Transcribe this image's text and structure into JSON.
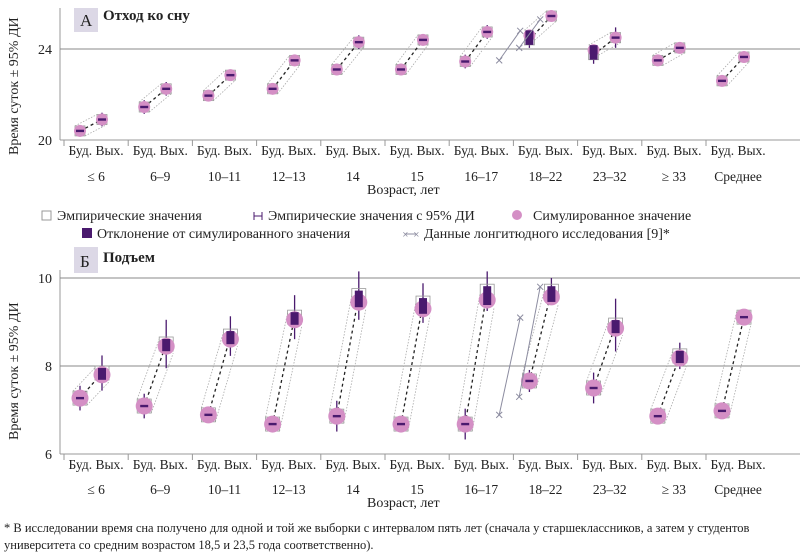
{
  "chart_data": [
    {
      "type": "scatter",
      "panel_letter": "А",
      "title": "Отход ко сну",
      "ylabel": "Время суток ± 95% ДИ",
      "xlabel": "Возраст, лет",
      "ylim": [
        20,
        25.8
      ],
      "yticks": [
        20,
        24
      ],
      "grid": "horizontal",
      "day_labels": [
        "Буд.",
        "Вых."
      ],
      "categories": [
        "≤ 6",
        "6–9",
        "10–11",
        "12–13",
        "14",
        "15",
        "16–17",
        "18–22",
        "23–32",
        "≥ 33",
        "Среднее"
      ],
      "series": [
        {
          "name": "Симулированное значение (Буд.)",
          "values": [
            20.4,
            21.45,
            21.95,
            22.25,
            23.1,
            23.1,
            23.45,
            24.6,
            23.95,
            23.5,
            22.6
          ]
        },
        {
          "name": "Симулированное значение (Вых.)",
          "values": [
            20.9,
            22.25,
            22.85,
            23.5,
            24.3,
            24.4,
            24.75,
            25.45,
            24.5,
            24.05,
            23.65
          ]
        },
        {
          "name": "Эмпирические значения (Буд.)",
          "values": [
            20.4,
            21.45,
            21.95,
            22.25,
            23.1,
            23.1,
            23.45,
            24.4,
            23.75,
            23.5,
            22.6
          ]
        },
        {
          "name": "Эмпирические значения (Вых.)",
          "values": [
            20.9,
            22.25,
            22.85,
            23.5,
            24.3,
            24.4,
            24.75,
            25.45,
            24.5,
            24.05,
            23.65
          ]
        },
        {
          "name": "95% ДИ (Буд.)",
          "values": [
            0.25,
            0.3,
            0.25,
            0.25,
            0.25,
            0.25,
            0.3,
            0.35,
            0.4,
            0.2,
            0.15
          ]
        },
        {
          "name": "95% ДИ (Вых.)",
          "values": [
            0.3,
            0.3,
            0.25,
            0.25,
            0.3,
            0.25,
            0.3,
            0.2,
            0.45,
            0.2,
            0.15
          ]
        }
      ],
      "deviation_flags": {
        "Буд.": [
          false,
          false,
          false,
          false,
          false,
          false,
          false,
          true,
          true,
          false,
          false
        ],
        "Вых.": [
          false,
          false,
          false,
          false,
          false,
          false,
          false,
          false,
          false,
          false,
          false
        ]
      },
      "longitudinal": [
        {
          "from": {
            "x_cat": "16–17",
            "y": 23.5
          },
          "to": {
            "x_cat": "18–22",
            "y": 24.8
          }
        },
        {
          "from": {
            "x_cat": "16–17",
            "y": 24.05
          },
          "to": {
            "x_cat": "18–22",
            "y": 25.3
          }
        }
      ]
    },
    {
      "type": "scatter",
      "panel_letter": "Б",
      "title": "Подъем",
      "ylabel": "Время суток ± 95% ДИ",
      "xlabel": "Возраст, лет",
      "ylim": [
        6,
        10.3
      ],
      "yticks": [
        6,
        8,
        10
      ],
      "grid": "horizontal",
      "day_labels": [
        "Буд.",
        "Вых."
      ],
      "categories": [
        "≤ 6",
        "6–9",
        "10–11",
        "12–13",
        "14",
        "15",
        "16–17",
        "18–22",
        "23–32",
        "≥ 33",
        "Среднее"
      ],
      "series": [
        {
          "name": "Симулированное значение (Буд.)",
          "values": [
            7.27,
            7.09,
            6.89,
            6.68,
            6.86,
            6.68,
            6.68,
            7.66,
            7.5,
            6.86,
            6.98
          ]
        },
        {
          "name": "Симулированное значение (Вых.)",
          "values": [
            7.8,
            8.45,
            8.61,
            9.05,
            9.45,
            9.3,
            9.5,
            9.57,
            8.86,
            8.18,
            9.11
          ]
        },
        {
          "name": "Эмпирические значения (Буд.)",
          "values": [
            7.27,
            7.09,
            6.89,
            6.68,
            6.86,
            6.68,
            6.68,
            7.66,
            7.5,
            6.86,
            6.98
          ]
        },
        {
          "name": "Эмпирические значения (Вых.)",
          "values": [
            7.84,
            8.5,
            8.68,
            9.11,
            9.6,
            9.43,
            9.7,
            9.7,
            8.93,
            8.23,
            9.11
          ]
        },
        {
          "name": "95% ДИ (Буд.)",
          "values": [
            0.28,
            0.28,
            0.15,
            0.15,
            0.35,
            0.15,
            0.35,
            0.25,
            0.35,
            0.15,
            0.1
          ]
        },
        {
          "name": "95% ДИ (Вых.)",
          "values": [
            0.4,
            0.55,
            0.45,
            0.5,
            0.55,
            0.45,
            0.45,
            0.3,
            0.6,
            0.3,
            0.1
          ]
        }
      ],
      "deviation_flags": {
        "Буд.": [
          false,
          false,
          false,
          false,
          false,
          false,
          false,
          false,
          false,
          false,
          false
        ],
        "Вых.": [
          true,
          true,
          true,
          true,
          true,
          true,
          true,
          true,
          true,
          true,
          false
        ]
      },
      "longitudinal": [
        {
          "from": {
            "x_cat": "16–17",
            "y": 6.89
          },
          "to": {
            "x_cat": "18–22",
            "y": 9.1
          }
        },
        {
          "from": {
            "x_cat": "16–17",
            "y": 7.3
          },
          "to": {
            "x_cat": "18–22",
            "y": 9.8
          }
        }
      ]
    }
  ],
  "legend": {
    "empirical": "Эмпирические значения",
    "empirical_ci": "Эмпирические значения с 95% ДИ",
    "simulated": "Симулированное значение",
    "deviation": "Отклонение от симулированного значения",
    "longitudinal": "Данные лонгитюдного исследования [9]*"
  },
  "colors": {
    "simulated": "#d48fc5",
    "deviation": "#4a1a6e",
    "empirical_box": "#9a9a9a",
    "longitudinal": "#8c8ca0",
    "panel_badge": "#dcd8e6",
    "grid": "#888888"
  },
  "footnote": "* В исследовании время сна получено для одной и той же выборки с интервалом пять лет (сначала у старшеклассников, а затем у студентов университета со средним возрастом 18,5 и 23,5 года соответственно)."
}
